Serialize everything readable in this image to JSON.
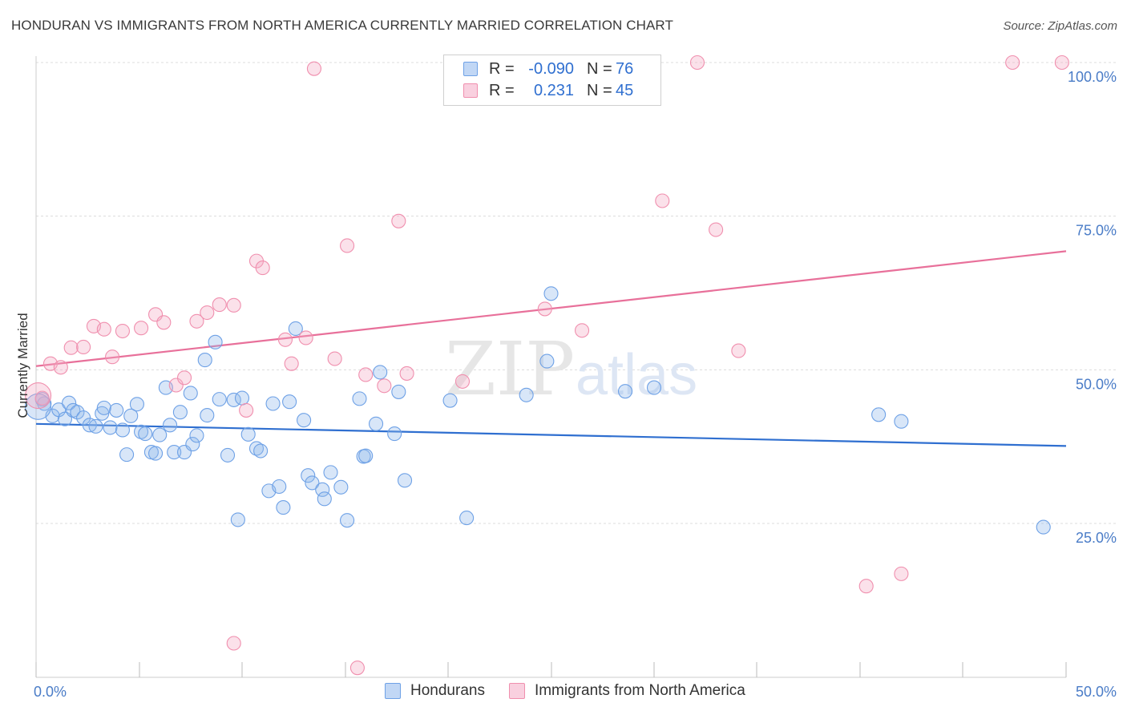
{
  "title": "HONDURAN VS IMMIGRANTS FROM NORTH AMERICA CURRENTLY MARRIED CORRELATION CHART",
  "source": "Source: ZipAtlas.com",
  "watermark": {
    "zip": "ZIP",
    "atlas": "atlas"
  },
  "legend": {
    "rows": [
      {
        "r_label": "R =",
        "r_value": "-0.090",
        "n_label": "N =",
        "n_value": "76",
        "color": "#6ea1e6"
      },
      {
        "r_label": "R =",
        "r_value": "0.231",
        "n_label": "N =",
        "n_value": "45",
        "color": "#f08fae"
      }
    ]
  },
  "bottom_legend": {
    "series1": "Hondurans",
    "series2": "Immigrants from North America"
  },
  "chart_data": {
    "type": "scatter",
    "title": "HONDURAN VS IMMIGRANTS FROM NORTH AMERICA CURRENTLY MARRIED CORRELATION CHART",
    "xlabel": "",
    "ylabel": "Currently Married",
    "xlim": [
      0,
      50
    ],
    "ylim": [
      0,
      103
    ],
    "x_tick_labels": [
      "0.0%",
      "50.0%"
    ],
    "y_tick_labels": [
      "25.0%",
      "50.0%",
      "75.0%",
      "100.0%"
    ],
    "y_ticks": [
      25,
      50,
      75,
      100
    ],
    "grid": true,
    "series": [
      {
        "name": "Hondurans",
        "color": "#6ea1e6",
        "fill": "rgba(142,182,236,0.35)",
        "line_color": "#2f6fd0",
        "trend": [
          [
            0,
            41.2
          ],
          [
            50,
            37.6
          ]
        ],
        "points": [
          [
            0.3,
            45.2
          ],
          [
            0.4,
            44.5
          ],
          [
            0.8,
            42.5
          ],
          [
            1.1,
            43.5
          ],
          [
            1.4,
            42.0
          ],
          [
            1.6,
            44.6
          ],
          [
            1.8,
            43.4
          ],
          [
            2.0,
            43.1
          ],
          [
            2.3,
            42.2
          ],
          [
            2.6,
            41.0
          ],
          [
            2.9,
            40.8
          ],
          [
            3.2,
            42.9
          ],
          [
            3.3,
            43.8
          ],
          [
            3.6,
            40.6
          ],
          [
            3.9,
            43.4
          ],
          [
            4.2,
            40.2
          ],
          [
            4.4,
            36.2
          ],
          [
            4.6,
            42.5
          ],
          [
            4.9,
            44.4
          ],
          [
            5.1,
            39.9
          ],
          [
            5.3,
            39.6
          ],
          [
            5.6,
            36.6
          ],
          [
            5.8,
            36.4
          ],
          [
            6.0,
            39.4
          ],
          [
            6.3,
            47.1
          ],
          [
            6.5,
            41.0
          ],
          [
            6.7,
            36.6
          ],
          [
            7.0,
            43.1
          ],
          [
            7.2,
            36.6
          ],
          [
            7.5,
            46.2
          ],
          [
            7.6,
            37.9
          ],
          [
            7.8,
            39.3
          ],
          [
            8.2,
            51.6
          ],
          [
            8.3,
            42.6
          ],
          [
            8.7,
            54.5
          ],
          [
            8.9,
            45.2
          ],
          [
            9.3,
            36.1
          ],
          [
            9.6,
            45.1
          ],
          [
            9.8,
            25.6
          ],
          [
            10.0,
            45.4
          ],
          [
            10.3,
            39.5
          ],
          [
            10.7,
            37.2
          ],
          [
            10.9,
            36.8
          ],
          [
            11.3,
            30.3
          ],
          [
            11.5,
            44.5
          ],
          [
            11.8,
            31.0
          ],
          [
            12.0,
            27.6
          ],
          [
            12.3,
            44.8
          ],
          [
            12.6,
            56.7
          ],
          [
            13.0,
            41.8
          ],
          [
            13.2,
            32.8
          ],
          [
            13.4,
            31.6
          ],
          [
            13.9,
            30.5
          ],
          [
            14.0,
            29.0
          ],
          [
            14.3,
            33.3
          ],
          [
            14.8,
            30.9
          ],
          [
            15.1,
            25.5
          ],
          [
            15.7,
            45.3
          ],
          [
            15.9,
            35.9
          ],
          [
            16.0,
            36.0
          ],
          [
            16.5,
            41.2
          ],
          [
            16.7,
            49.6
          ],
          [
            17.4,
            39.6
          ],
          [
            17.6,
            46.4
          ],
          [
            17.9,
            32.0
          ],
          [
            20.1,
            45.0
          ],
          [
            20.9,
            25.9
          ],
          [
            23.8,
            45.9
          ],
          [
            24.8,
            51.4
          ],
          [
            25.0,
            62.4
          ],
          [
            28.6,
            46.5
          ],
          [
            30.0,
            47.1
          ],
          [
            40.9,
            42.7
          ],
          [
            42.0,
            41.6
          ],
          [
            48.9,
            24.4
          ],
          [
            0.1,
            44.0
          ]
        ]
      },
      {
        "name": "Immigrants from North America",
        "color": "#f08fae",
        "fill": "rgba(244,170,196,0.35)",
        "line_color": "#e8709a",
        "trend": [
          [
            0,
            50.6
          ],
          [
            50,
            69.3
          ]
        ],
        "points": [
          [
            0.3,
            45.4
          ],
          [
            0.7,
            51.0
          ],
          [
            1.2,
            50.4
          ],
          [
            1.7,
            53.6
          ],
          [
            2.3,
            53.7
          ],
          [
            2.8,
            57.1
          ],
          [
            3.3,
            56.6
          ],
          [
            3.7,
            52.1
          ],
          [
            4.2,
            56.3
          ],
          [
            5.1,
            56.8
          ],
          [
            5.8,
            59.0
          ],
          [
            6.2,
            57.7
          ],
          [
            6.8,
            47.5
          ],
          [
            7.2,
            48.7
          ],
          [
            7.8,
            57.9
          ],
          [
            8.3,
            59.3
          ],
          [
            8.9,
            60.6
          ],
          [
            9.6,
            60.5
          ],
          [
            10.2,
            43.4
          ],
          [
            10.7,
            67.7
          ],
          [
            11.0,
            66.6
          ],
          [
            12.1,
            54.9
          ],
          [
            12.4,
            51.0
          ],
          [
            13.1,
            55.2
          ],
          [
            13.5,
            99.0
          ],
          [
            14.5,
            51.8
          ],
          [
            15.1,
            70.2
          ],
          [
            15.6,
            1.5
          ],
          [
            16.0,
            49.2
          ],
          [
            16.9,
            47.4
          ],
          [
            17.6,
            74.2
          ],
          [
            18.0,
            49.4
          ],
          [
            20.7,
            48.1
          ],
          [
            24.7,
            59.9
          ],
          [
            26.5,
            56.4
          ],
          [
            30.4,
            77.5
          ],
          [
            32.1,
            100.0
          ],
          [
            33.0,
            72.8
          ],
          [
            34.1,
            53.1
          ],
          [
            40.3,
            14.8
          ],
          [
            42.0,
            16.8
          ],
          [
            47.4,
            100.0
          ],
          [
            49.8,
            100.0
          ],
          [
            9.6,
            5.5
          ],
          [
            0.1,
            45.8
          ]
        ]
      }
    ]
  }
}
